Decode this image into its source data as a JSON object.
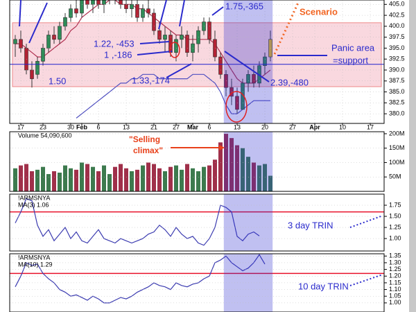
{
  "chart_data": [
    {
      "type": "candlestick",
      "x": [
        -1,
        0,
        1,
        2,
        3,
        4,
        5,
        6,
        7,
        8,
        9,
        10,
        11,
        12,
        13,
        14,
        15,
        16,
        17,
        18,
        19,
        20,
        21,
        22,
        23,
        24,
        25,
        26,
        27,
        28,
        29,
        30,
        31,
        32,
        33,
        34,
        35,
        36,
        37,
        38,
        39,
        40,
        41,
        42,
        43,
        44,
        45
      ],
      "open": [
        396,
        397,
        395,
        390,
        389,
        392,
        395,
        398,
        397,
        400,
        402,
        404,
        403,
        406,
        405,
        406,
        405,
        406,
        407,
        406,
        405,
        404,
        405,
        402,
        404,
        403,
        399,
        397,
        398,
        394,
        397,
        398,
        394,
        396,
        399,
        401,
        397,
        393,
        389,
        386,
        384,
        381,
        387,
        389,
        387,
        391,
        393
      ],
      "high": [
        398,
        399,
        396,
        392,
        393,
        396,
        399,
        400,
        401,
        403,
        405,
        406,
        407,
        407,
        407,
        408,
        407,
        408,
        408,
        407,
        406,
        406,
        406,
        405,
        406,
        404,
        401,
        400,
        399,
        398,
        400,
        399,
        398,
        400,
        402,
        402,
        399,
        394,
        390,
        388,
        386,
        388,
        390,
        391,
        392,
        394,
        399
      ],
      "low": [
        393,
        394,
        389,
        386,
        388,
        391,
        394,
        396,
        396,
        399,
        401,
        402,
        402,
        404,
        403,
        404,
        403,
        405,
        405,
        404,
        403,
        402,
        401,
        401,
        402,
        398,
        396,
        394,
        393,
        392,
        395,
        393,
        392,
        394,
        398,
        396,
        392,
        388,
        384,
        382,
        380,
        381,
        385,
        386,
        386,
        389,
        392
      ],
      "close": [
        397,
        395,
        390,
        388,
        392,
        395,
        398,
        397,
        400,
        402,
        404,
        403,
        406,
        405,
        406,
        405,
        406,
        407,
        406,
        405,
        404,
        405,
        402,
        404,
        403,
        399,
        397,
        398,
        394,
        397,
        398,
        394,
        396,
        399,
        401,
        397,
        393,
        389,
        386,
        384,
        381,
        387,
        389,
        387,
        391,
        393,
        397
      ],
      "up_color": "#2e8b57",
      "down_color": "#b22234",
      "last_color": "#e8c020",
      "lines": [
        {
          "color": "#b03050",
          "values": [
            396,
            396,
            395,
            394,
            393,
            393,
            394,
            395,
            396,
            397,
            399,
            400,
            402,
            403,
            404,
            405,
            405,
            406,
            406,
            405,
            405,
            405,
            404,
            404,
            403,
            402,
            401,
            400,
            399,
            398,
            398,
            397,
            397,
            397,
            397,
            397,
            396,
            394,
            392,
            390,
            388,
            387,
            387,
            387,
            388,
            389,
            390
          ]
        },
        {
          "color": "#5050c0",
          "values": [
            null,
            null,
            null,
            null,
            null,
            null,
            null,
            null,
            null,
            null,
            null,
            379,
            380,
            381,
            382,
            383,
            384,
            385,
            386,
            387,
            387,
            388,
            388,
            389,
            389,
            389,
            388,
            388,
            388,
            388,
            388,
            388,
            389,
            389,
            389,
            388,
            387,
            385,
            382,
            380,
            380,
            381,
            382,
            383,
            383,
            383,
            383
          ]
        }
      ],
      "band": [
        386.2,
        400.8
      ],
      "band_color": "#f4b8c4",
      "hline": 391.3,
      "hline_color": "#2020cc",
      "highlight": [
        36.6,
        45.4
      ],
      "highlight_color": "#3030d0",
      "xlim": [
        -2,
        65.5
      ],
      "xticks": [
        {
          "value": 0,
          "label": "17"
        },
        {
          "value": 4,
          "label": "23"
        },
        {
          "value": 9,
          "label": "30"
        },
        {
          "value": 11,
          "label": "Feb"
        },
        {
          "value": 14,
          "label": "6"
        },
        {
          "value": 19,
          "label": "13"
        },
        {
          "value": 24,
          "label": "21"
        },
        {
          "value": 28,
          "label": "27"
        },
        {
          "value": 31,
          "label": "Mar"
        },
        {
          "value": 34,
          "label": "6"
        },
        {
          "value": 39,
          "label": "13"
        },
        {
          "value": 44,
          "label": "20"
        },
        {
          "value": 49,
          "label": "27"
        },
        {
          "value": 53,
          "label": "Apr"
        },
        {
          "value": 58,
          "label": "10"
        },
        {
          "value": 63,
          "label": "17"
        }
      ],
      "ylim": [
        377.8,
        406
      ],
      "yticks": [
        {
          "value": 405,
          "label": "405.0"
        },
        402.5,
        {
          "value": 400,
          "label": "400.0"
        },
        397.5,
        {
          "value": 395,
          "label": "395.0"
        },
        392.5,
        {
          "value": 390,
          "label": "390.0"
        },
        387.5,
        {
          "value": 385,
          "label": "385.0"
        },
        382.5,
        {
          "value": 380,
          "label": "380.0"
        }
      ],
      "annotations": [
        "1.75,-365",
        "1.22, -453",
        "1 ,-186",
        "1.33,-174",
        "1.50",
        "2.39,-480",
        "Scenario",
        "Panic area",
        "=support"
      ]
    },
    {
      "type": "bar",
      "title": "Volume 54,090,600",
      "x": [
        -1,
        0,
        1,
        2,
        3,
        4,
        5,
        6,
        7,
        8,
        9,
        10,
        11,
        12,
        13,
        14,
        15,
        16,
        17,
        18,
        19,
        20,
        21,
        22,
        23,
        24,
        25,
        26,
        27,
        28,
        29,
        30,
        31,
        32,
        33,
        34,
        35,
        36,
        37,
        38,
        39,
        40,
        41,
        42,
        43,
        44,
        45
      ],
      "values": [
        80,
        90,
        95,
        70,
        75,
        85,
        60,
        70,
        65,
        90,
        80,
        75,
        100,
        95,
        85,
        70,
        90,
        60,
        85,
        95,
        80,
        70,
        75,
        90,
        100,
        95,
        80,
        70,
        85,
        90,
        75,
        95,
        80,
        70,
        85,
        90,
        110,
        170,
        200,
        185,
        160,
        150,
        120,
        100,
        90,
        95,
        54.09
      ],
      "up_color": "#3d7a4e",
      "down_color": "#a0304a",
      "xlim": [
        -2,
        65.5
      ],
      "ylim": [
        0,
        207
      ],
      "yticks": [
        {
          "value": 200,
          "label": "200M"
        },
        {
          "value": 150,
          "label": "150M"
        },
        {
          "value": 100,
          "label": "100M"
        },
        {
          "value": 50,
          "label": "50M"
        }
      ],
      "annotations": [
        "\"Selling",
        "climax\""
      ]
    },
    {
      "type": "line",
      "title": "!ARMSNYA",
      "subtitle": "MA(3) 1.06",
      "x": [
        -1,
        0,
        1,
        2,
        3,
        4,
        5,
        6,
        7,
        8,
        9,
        10,
        11,
        12,
        13,
        14,
        15,
        16,
        17,
        18,
        19,
        20,
        21,
        22,
        23,
        24,
        25,
        26,
        27,
        28,
        29,
        30,
        31,
        32,
        33,
        34,
        35,
        36,
        37,
        38,
        39,
        40,
        41,
        42,
        43,
        44,
        45
      ],
      "values": [
        1.35,
        1.6,
        1.9,
        1.85,
        1.3,
        1.05,
        1.2,
        0.95,
        1.1,
        1.25,
        1.0,
        1.15,
        0.95,
        0.9,
        1.05,
        1.2,
        1.0,
        0.95,
        0.9,
        1.0,
        0.95,
        0.9,
        0.95,
        1.0,
        1.1,
        1.15,
        1.3,
        1.2,
        1.05,
        1.25,
        1.1,
        1.0,
        1.05,
        0.9,
        0.85,
        1.0,
        1.25,
        1.75,
        1.7,
        1.6,
        1.05,
        0.95,
        1.1,
        1.15,
        1.06,
        null,
        null
      ],
      "color": "#3b3bb0",
      "hline": 1.6,
      "hline_color": "#e8102a",
      "xlim": [
        -2,
        65.5
      ],
      "ylim": [
        0.72,
        2.0
      ],
      "yticks": [
        1.75,
        {
          "value": 1.5,
          "label": "1.50"
        },
        1.25,
        {
          "value": 1.0,
          "label": "1.00"
        }
      ],
      "annotations": [
        "3 day TRIN"
      ]
    },
    {
      "type": "line",
      "title": "!ARMSNYA",
      "subtitle": "MA(10) 1.29",
      "x": [
        -1,
        0,
        1,
        2,
        3,
        4,
        5,
        6,
        7,
        8,
        9,
        10,
        11,
        12,
        13,
        14,
        15,
        16,
        17,
        18,
        19,
        20,
        21,
        22,
        23,
        24,
        25,
        26,
        27,
        28,
        29,
        30,
        31,
        32,
        33,
        34,
        35,
        36,
        37,
        38,
        39,
        40,
        41,
        42,
        43,
        44,
        45
      ],
      "values": [
        1.12,
        1.2,
        1.3,
        1.28,
        1.29,
        1.22,
        1.18,
        1.15,
        1.1,
        1.08,
        1.05,
        1.06,
        1.04,
        1.02,
        1.05,
        1.03,
        1.0,
        1.0,
        1.02,
        1.04,
        1.03,
        1.05,
        1.08,
        1.1,
        1.12,
        1.15,
        1.13,
        1.12,
        1.1,
        1.15,
        1.13,
        1.12,
        1.14,
        1.15,
        1.18,
        1.2,
        1.3,
        1.32,
        1.35,
        1.3,
        1.27,
        1.24,
        1.26,
        1.3,
        1.36,
        1.29,
        null
      ],
      "color": "#3b3bb0",
      "hline": 1.22,
      "hline_color": "#e8102a",
      "xlim": [
        -2,
        65.5
      ],
      "ylim": [
        0.932,
        1.367
      ],
      "yticks": [
        1.35,
        {
          "value": 1.3,
          "label": "1.30"
        },
        1.25,
        {
          "value": 1.2,
          "label": "1.20"
        },
        1.15,
        {
          "value": 1.1,
          "label": "1.10"
        },
        1.05,
        {
          "value": 1.0,
          "label": "1.00"
        }
      ],
      "annotations": [
        "10 day TRIN"
      ]
    }
  ]
}
